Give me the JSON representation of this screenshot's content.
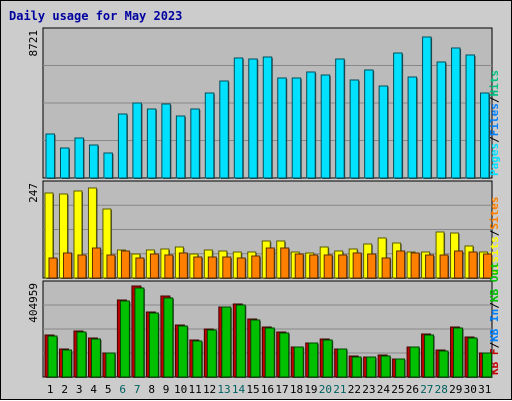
{
  "title": "Daily usage for May 2023",
  "colors": {
    "background": "#cccccc",
    "plot_background": "#bbbbbb",
    "grid": "#888888",
    "pages": "#00e0ff",
    "files": "#0080ff",
    "hits": "#00c080",
    "visits": "#ffff00",
    "sites": "#ff8000",
    "kb_in": "#00c000",
    "kb_out": "#00c000",
    "kb_f": "#c00000",
    "weekend_day_label": "#006060",
    "weekday_day_label": "#000000"
  },
  "chart_data": [
    {
      "type": "bar",
      "panel": "pages",
      "ymax_label": "8721",
      "ylim": [
        0,
        8721
      ],
      "grid": true,
      "right_labels": [
        {
          "text": "Pages",
          "color": "#00e0ff"
        },
        {
          "text": "/",
          "color": "#000000"
        },
        {
          "text": "Files",
          "color": "#0080ff"
        },
        {
          "text": "/",
          "color": "#000000"
        },
        {
          "text": "Hits",
          "color": "#00c080"
        }
      ],
      "categories": [
        "1",
        "2",
        "3",
        "4",
        "5",
        "6",
        "7",
        "8",
        "9",
        "10",
        "11",
        "12",
        "13",
        "14",
        "15",
        "16",
        "17",
        "18",
        "19",
        "20",
        "21",
        "22",
        "23",
        "24",
        "25",
        "26",
        "27",
        "28",
        "29",
        "30",
        "31"
      ],
      "series": [
        {
          "name": "Pages",
          "values": [
            2600,
            1800,
            2400,
            2000,
            1500,
            3850,
            4500,
            4100,
            4450,
            3700,
            4100,
            5100,
            5800,
            7150,
            7100,
            7200,
            5950,
            5950,
            6350,
            6150,
            7100,
            5850,
            6450,
            5500,
            7450,
            6050,
            8450,
            6950,
            7750,
            7350,
            5050
          ]
        }
      ]
    },
    {
      "type": "bar",
      "panel": "visits",
      "ymax_label": "247",
      "ylim": [
        0,
        247
      ],
      "grid": true,
      "right_labels": [
        {
          "text": "Visits",
          "color": "#ffff00"
        },
        {
          "text": "/",
          "color": "#000000"
        },
        {
          "text": "Sites",
          "color": "#ff8000"
        }
      ],
      "categories": [
        "1",
        "2",
        "3",
        "4",
        "5",
        "6",
        "7",
        "8",
        "9",
        "10",
        "11",
        "12",
        "13",
        "14",
        "15",
        "16",
        "17",
        "18",
        "19",
        "20",
        "21",
        "22",
        "23",
        "24",
        "25",
        "26",
        "27",
        "28",
        "29",
        "30",
        "31"
      ],
      "series": [
        {
          "name": "Visits",
          "values": [
            225,
            222,
            230,
            239,
            183,
            75,
            63,
            75,
            77,
            83,
            65,
            75,
            73,
            68,
            68,
            98,
            98,
            68,
            66,
            82,
            73,
            78,
            91,
            107,
            93,
            70,
            68,
            121,
            120,
            85,
            68
          ]
        },
        {
          "name": "Sites",
          "values": [
            53,
            66,
            61,
            79,
            62,
            72,
            54,
            65,
            61,
            67,
            57,
            56,
            55,
            52,
            58,
            80,
            80,
            65,
            60,
            61,
            62,
            67,
            64,
            52,
            71,
            66,
            61,
            62,
            72,
            68,
            63
          ]
        }
      ]
    },
    {
      "type": "bar",
      "panel": "kbytes",
      "ymax_label": "404959",
      "ylim": [
        0,
        404959
      ],
      "grid": true,
      "right_labels": [
        {
          "text": "KB F",
          "color": "#c00000"
        },
        {
          "text": "/",
          "color": "#000000"
        },
        {
          "text": "KB In",
          "color": "#0080ff"
        },
        {
          "text": "/",
          "color": "#000000"
        },
        {
          "text": "KB Out",
          "color": "#00c000"
        }
      ],
      "categories": [
        "1",
        "2",
        "3",
        "4",
        "5",
        "6",
        "7",
        "8",
        "9",
        "10",
        "11",
        "12",
        "13",
        "14",
        "15",
        "16",
        "17",
        "18",
        "19",
        "20",
        "21",
        "22",
        "23",
        "24",
        "25",
        "26",
        "27",
        "28",
        "29",
        "30",
        "31"
      ],
      "series": [
        {
          "name": "KB F",
          "values": [
            185000,
            122000,
            203000,
            172000,
            106000,
            340000,
            400000,
            286000,
            355000,
            229000,
            161000,
            211000,
            310000,
            320000,
            254000,
            219000,
            199000,
            133000,
            151000,
            166000,
            125000,
            91000,
            90000,
            96000,
            81000,
            133000,
            190000,
            117000,
            220000,
            177000,
            107000
          ]
        },
        {
          "name": "KB Out",
          "values": [
            182000,
            118000,
            199000,
            169000,
            104000,
            334000,
            393000,
            280000,
            348000,
            225000,
            158000,
            208000,
            307000,
            318000,
            250000,
            215000,
            194000,
            130000,
            148000,
            162000,
            122000,
            89000,
            88000,
            94000,
            79000,
            130000,
            187000,
            114000,
            215000,
            173000,
            104000
          ]
        }
      ]
    }
  ],
  "x_labels": [
    {
      "text": "1",
      "weekend": false
    },
    {
      "text": "2",
      "weekend": false
    },
    {
      "text": "3",
      "weekend": false
    },
    {
      "text": "4",
      "weekend": false
    },
    {
      "text": "5",
      "weekend": false
    },
    {
      "text": "6",
      "weekend": true
    },
    {
      "text": "7",
      "weekend": true
    },
    {
      "text": "8",
      "weekend": false
    },
    {
      "text": "9",
      "weekend": false
    },
    {
      "text": "10",
      "weekend": false
    },
    {
      "text": "11",
      "weekend": false
    },
    {
      "text": "12",
      "weekend": false
    },
    {
      "text": "13",
      "weekend": true
    },
    {
      "text": "14",
      "weekend": true
    },
    {
      "text": "15",
      "weekend": false
    },
    {
      "text": "16",
      "weekend": false
    },
    {
      "text": "17",
      "weekend": false
    },
    {
      "text": "18",
      "weekend": false
    },
    {
      "text": "19",
      "weekend": false
    },
    {
      "text": "20",
      "weekend": true
    },
    {
      "text": "21",
      "weekend": true
    },
    {
      "text": "22",
      "weekend": false
    },
    {
      "text": "23",
      "weekend": false
    },
    {
      "text": "24",
      "weekend": false
    },
    {
      "text": "25",
      "weekend": false
    },
    {
      "text": "26",
      "weekend": false
    },
    {
      "text": "27",
      "weekend": true
    },
    {
      "text": "28",
      "weekend": true
    },
    {
      "text": "29",
      "weekend": false
    },
    {
      "text": "30",
      "weekend": false
    },
    {
      "text": "31",
      "weekend": false
    }
  ]
}
